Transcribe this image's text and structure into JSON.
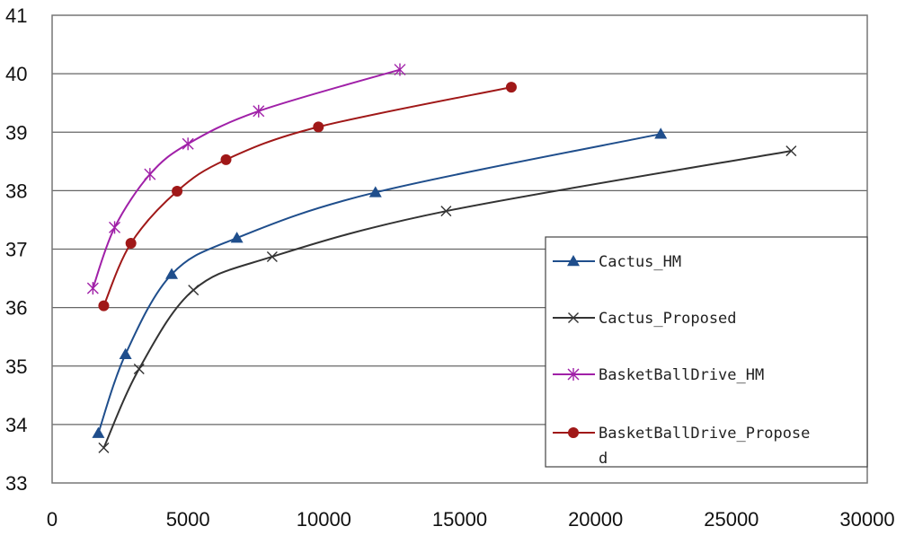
{
  "chart_data": {
    "type": "line",
    "title": "",
    "xlabel": "",
    "ylabel": "",
    "xlim": [
      0,
      30000
    ],
    "ylim": [
      33,
      41
    ],
    "x_ticks": [
      "0",
      "5000",
      "10000",
      "15000",
      "20000",
      "25000",
      "30000"
    ],
    "y_ticks": [
      "33",
      "34",
      "35",
      "36",
      "37",
      "38",
      "39",
      "40",
      "41"
    ],
    "grid": "horizontal",
    "legend_position": "right",
    "series": [
      {
        "name": "Cactus_HM",
        "color": "#1f4e8c",
        "marker": "triangle",
        "x": [
          1700,
          2700,
          4400,
          6800,
          11900,
          22400
        ],
        "y": [
          33.85,
          35.2,
          36.57,
          37.19,
          37.97,
          38.97
        ]
      },
      {
        "name": "Cactus_Proposed",
        "color": "#333333",
        "marker": "x",
        "x": [
          1900,
          3200,
          5200,
          8100,
          14500,
          27200
        ],
        "y": [
          33.6,
          34.95,
          36.3,
          36.87,
          37.65,
          38.68
        ]
      },
      {
        "name": "BasketBallDrive_HM",
        "color": "#a020a8",
        "marker": "star",
        "x": [
          1500,
          2300,
          3600,
          5000,
          7600,
          12800
        ],
        "y": [
          36.33,
          37.37,
          38.28,
          38.8,
          39.36,
          40.07
        ]
      },
      {
        "name": "BasketBallDrive_Propose\nd",
        "color": "#a01818",
        "marker": "circle",
        "x": [
          1900,
          2900,
          4600,
          6400,
          9800,
          16900
        ],
        "y": [
          36.03,
          37.1,
          37.99,
          38.53,
          39.09,
          39.77
        ]
      }
    ]
  }
}
